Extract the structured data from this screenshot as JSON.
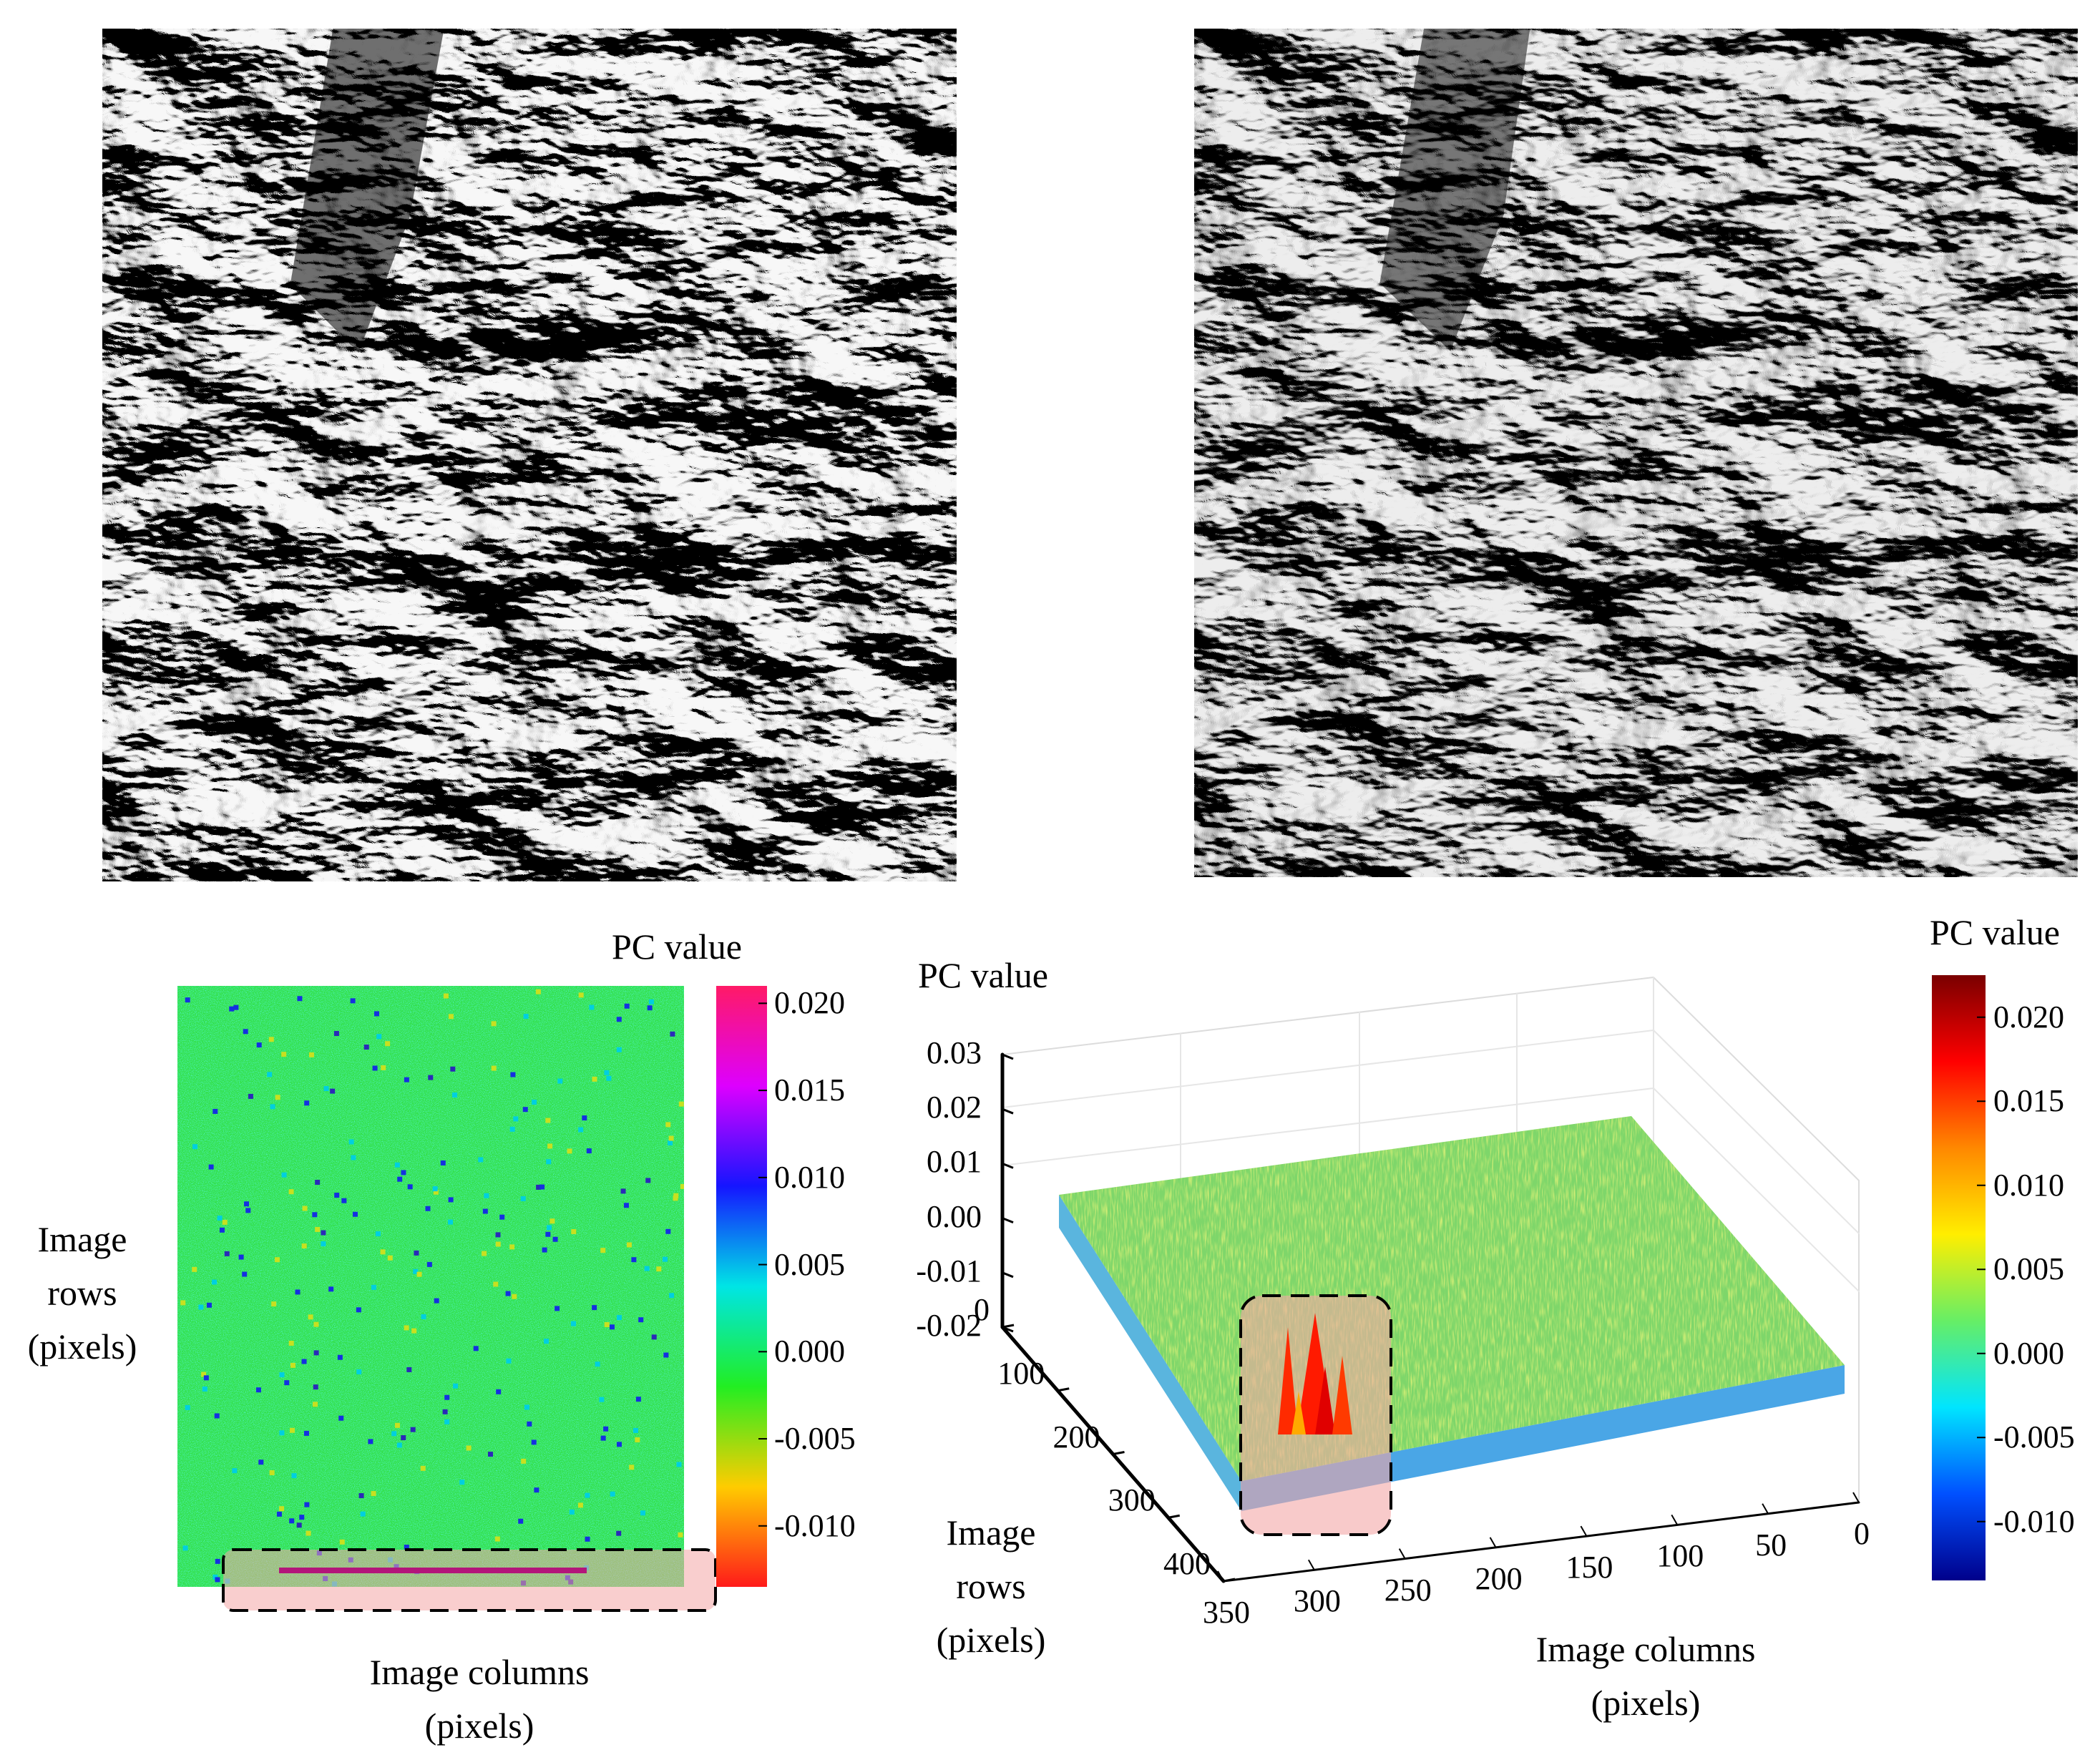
{
  "chart_data": [
    {
      "type": "heatmap",
      "panel": "2d-pc-map",
      "xlabel": "Image columns (pixels)",
      "ylabel": "Image rows (pixels)",
      "colorbar": {
        "title": "PC value",
        "ticks": [
          "0.020",
          "0.015",
          "0.010",
          "0.005",
          "0.000",
          "-0.005",
          "-0.010"
        ],
        "range": [
          -0.0135,
          0.021
        ],
        "colors": [
          "#ff1a1a",
          "#ffcc00",
          "#22ee22",
          "#00e5e5",
          "#1515ff",
          "#dd00ff",
          "#ff1a66"
        ]
      },
      "background_value": -0.002
    },
    {
      "type": "surface",
      "panel": "3d-pc-surface",
      "zlabel": "PC value",
      "ylabel": "Image rows (pixels)",
      "xlabel": "Image columns (pixels)",
      "z_ticks": [
        "0.03",
        "0.02",
        "0.01",
        "0.00",
        "-0.01",
        "-0.02"
      ],
      "row_ticks": [
        "0",
        "100",
        "200",
        "300",
        "400"
      ],
      "column_ticks": [
        "350",
        "300",
        "250",
        "200",
        "150",
        "100",
        "50",
        "0"
      ],
      "zlim": [
        -0.02,
        0.03
      ],
      "rows_range": [
        0,
        400
      ],
      "columns_range": [
        0,
        350
      ],
      "baseline_value": 0.003,
      "peak_value": 0.021,
      "colorbar": {
        "title": "PC value",
        "ticks": [
          "0.020",
          "0.015",
          "0.010",
          "0.005",
          "0.000",
          "-0.005",
          "-0.010"
        ],
        "range": [
          -0.0135,
          0.0225
        ],
        "colors": [
          "#00008b",
          "#0050ff",
          "#00e5ff",
          "#66ee66",
          "#ffee00",
          "#ff8800",
          "#ff0000",
          "#7a0000"
        ]
      }
    }
  ],
  "icons": {
    "sar_image_1": "sar-image-icon",
    "sar_image_2": "sar-image-icon"
  }
}
